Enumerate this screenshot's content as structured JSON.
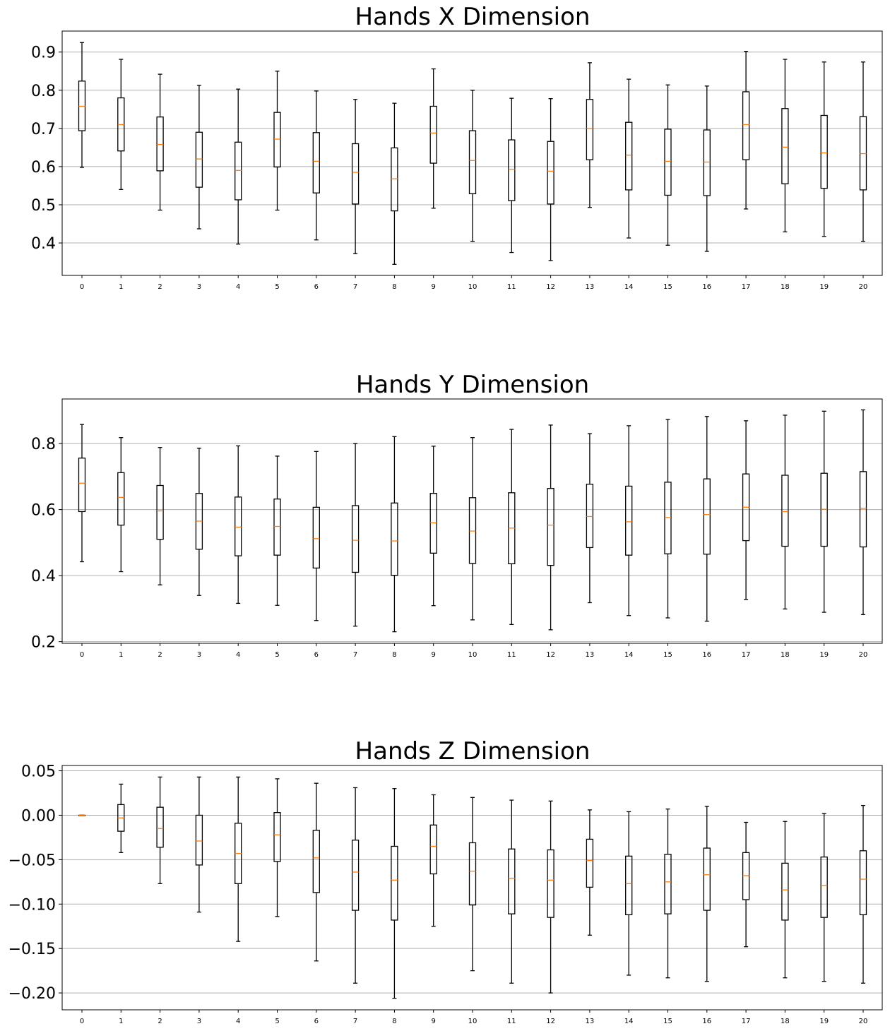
{
  "chart_data": [
    {
      "type": "box",
      "title": "Hands X Dimension",
      "xlabel": "",
      "ylabel": "",
      "categories": [
        "0",
        "1",
        "2",
        "3",
        "4",
        "5",
        "6",
        "7",
        "8",
        "9",
        "10",
        "11",
        "12",
        "13",
        "14",
        "15",
        "16",
        "17",
        "18",
        "19",
        "20"
      ],
      "ylim": [
        0.315,
        0.955
      ],
      "yticks": [
        0.4,
        0.5,
        0.6,
        0.7,
        0.8,
        0.9
      ],
      "ytick_labels": [
        "0.4",
        "0.5",
        "0.6",
        "0.7",
        "0.8",
        "0.9"
      ],
      "grid": "y",
      "boxes": [
        {
          "whislo": 0.598,
          "q1": 0.694,
          "med": 0.758,
          "q3": 0.824,
          "whishi": 0.925
        },
        {
          "whislo": 0.54,
          "q1": 0.641,
          "med": 0.71,
          "q3": 0.78,
          "whishi": 0.881
        },
        {
          "whislo": 0.486,
          "q1": 0.589,
          "med": 0.658,
          "q3": 0.73,
          "whishi": 0.842
        },
        {
          "whislo": 0.437,
          "q1": 0.546,
          "med": 0.62,
          "q3": 0.69,
          "whishi": 0.813
        },
        {
          "whislo": 0.397,
          "q1": 0.513,
          "med": 0.59,
          "q3": 0.664,
          "whishi": 0.803
        },
        {
          "whislo": 0.486,
          "q1": 0.599,
          "med": 0.672,
          "q3": 0.742,
          "whishi": 0.85
        },
        {
          "whislo": 0.408,
          "q1": 0.531,
          "med": 0.614,
          "q3": 0.689,
          "whishi": 0.798
        },
        {
          "whislo": 0.372,
          "q1": 0.502,
          "med": 0.585,
          "q3": 0.66,
          "whishi": 0.776
        },
        {
          "whislo": 0.344,
          "q1": 0.484,
          "med": 0.568,
          "q3": 0.649,
          "whishi": 0.766
        },
        {
          "whislo": 0.491,
          "q1": 0.609,
          "med": 0.688,
          "q3": 0.758,
          "whishi": 0.856
        },
        {
          "whislo": 0.404,
          "q1": 0.529,
          "med": 0.616,
          "q3": 0.694,
          "whishi": 0.8
        },
        {
          "whislo": 0.375,
          "q1": 0.511,
          "med": 0.593,
          "q3": 0.67,
          "whishi": 0.779
        },
        {
          "whislo": 0.354,
          "q1": 0.502,
          "med": 0.588,
          "q3": 0.666,
          "whishi": 0.778
        },
        {
          "whislo": 0.493,
          "q1": 0.618,
          "med": 0.7,
          "q3": 0.776,
          "whishi": 0.872
        },
        {
          "whislo": 0.413,
          "q1": 0.539,
          "med": 0.63,
          "q3": 0.716,
          "whishi": 0.829
        },
        {
          "whislo": 0.394,
          "q1": 0.525,
          "med": 0.614,
          "q3": 0.698,
          "whishi": 0.814
        },
        {
          "whislo": 0.378,
          "q1": 0.524,
          "med": 0.612,
          "q3": 0.696,
          "whishi": 0.811
        },
        {
          "whislo": 0.489,
          "q1": 0.618,
          "med": 0.71,
          "q3": 0.796,
          "whishi": 0.902
        },
        {
          "whislo": 0.429,
          "q1": 0.555,
          "med": 0.651,
          "q3": 0.752,
          "whishi": 0.881
        },
        {
          "whislo": 0.417,
          "q1": 0.543,
          "med": 0.636,
          "q3": 0.734,
          "whishi": 0.874
        },
        {
          "whislo": 0.404,
          "q1": 0.539,
          "med": 0.634,
          "q3": 0.731,
          "whishi": 0.874
        }
      ]
    },
    {
      "type": "box",
      "title": "Hands Y Dimension",
      "xlabel": "",
      "ylabel": "",
      "categories": [
        "0",
        "1",
        "2",
        "3",
        "4",
        "5",
        "6",
        "7",
        "8",
        "9",
        "10",
        "11",
        "12",
        "13",
        "14",
        "15",
        "16",
        "17",
        "18",
        "19",
        "20"
      ],
      "ylim": [
        0.195,
        0.935
      ],
      "yticks": [
        0.2,
        0.4,
        0.6,
        0.8
      ],
      "ytick_labels": [
        "0.2",
        "0.4",
        "0.6",
        "0.8"
      ],
      "grid": "y",
      "boxes": [
        {
          "whislo": 0.442,
          "q1": 0.594,
          "med": 0.68,
          "q3": 0.756,
          "whishi": 0.858
        },
        {
          "whislo": 0.412,
          "q1": 0.553,
          "med": 0.637,
          "q3": 0.712,
          "whishi": 0.818
        },
        {
          "whislo": 0.372,
          "q1": 0.51,
          "med": 0.596,
          "q3": 0.673,
          "whishi": 0.788
        },
        {
          "whislo": 0.34,
          "q1": 0.48,
          "med": 0.565,
          "q3": 0.649,
          "whishi": 0.786
        },
        {
          "whislo": 0.316,
          "q1": 0.46,
          "med": 0.547,
          "q3": 0.638,
          "whishi": 0.793
        },
        {
          "whislo": 0.31,
          "q1": 0.462,
          "med": 0.549,
          "q3": 0.632,
          "whishi": 0.762
        },
        {
          "whislo": 0.264,
          "q1": 0.423,
          "med": 0.512,
          "q3": 0.607,
          "whishi": 0.776
        },
        {
          "whislo": 0.247,
          "q1": 0.41,
          "med": 0.507,
          "q3": 0.612,
          "whishi": 0.8
        },
        {
          "whislo": 0.23,
          "q1": 0.401,
          "med": 0.505,
          "q3": 0.62,
          "whishi": 0.821
        },
        {
          "whislo": 0.309,
          "q1": 0.468,
          "med": 0.56,
          "q3": 0.649,
          "whishi": 0.792
        },
        {
          "whislo": 0.266,
          "q1": 0.437,
          "med": 0.535,
          "q3": 0.636,
          "whishi": 0.818
        },
        {
          "whislo": 0.252,
          "q1": 0.436,
          "med": 0.544,
          "q3": 0.651,
          "whishi": 0.843
        },
        {
          "whislo": 0.236,
          "q1": 0.431,
          "med": 0.553,
          "q3": 0.664,
          "whishi": 0.856
        },
        {
          "whislo": 0.318,
          "q1": 0.485,
          "med": 0.579,
          "q3": 0.677,
          "whishi": 0.83
        },
        {
          "whislo": 0.279,
          "q1": 0.462,
          "med": 0.563,
          "q3": 0.671,
          "whishi": 0.854
        },
        {
          "whislo": 0.272,
          "q1": 0.466,
          "med": 0.576,
          "q3": 0.683,
          "whishi": 0.873
        },
        {
          "whislo": 0.262,
          "q1": 0.465,
          "med": 0.585,
          "q3": 0.693,
          "whishi": 0.882
        },
        {
          "whislo": 0.328,
          "q1": 0.506,
          "med": 0.607,
          "q3": 0.708,
          "whishi": 0.869
        },
        {
          "whislo": 0.299,
          "q1": 0.489,
          "med": 0.594,
          "q3": 0.704,
          "whishi": 0.886
        },
        {
          "whislo": 0.289,
          "q1": 0.489,
          "med": 0.601,
          "q3": 0.71,
          "whishi": 0.898
        },
        {
          "whislo": 0.282,
          "q1": 0.487,
          "med": 0.604,
          "q3": 0.715,
          "whishi": 0.902
        }
      ]
    },
    {
      "type": "box",
      "title": "Hands Z Dimension",
      "xlabel": "",
      "ylabel": "",
      "categories": [
        "0",
        "1",
        "2",
        "3",
        "4",
        "5",
        "6",
        "7",
        "8",
        "9",
        "10",
        "11",
        "12",
        "13",
        "14",
        "15",
        "16",
        "17",
        "18",
        "19",
        "20"
      ],
      "ylim": [
        -0.219,
        0.056
      ],
      "yticks": [
        -0.2,
        -0.15,
        -0.1,
        -0.05,
        0.0,
        0.05
      ],
      "ytick_labels": [
        "−0.20",
        "−0.15",
        "−0.10",
        "−0.05",
        "0.00",
        "0.05"
      ],
      "grid": "y",
      "boxes": [
        {
          "whislo": 0.0,
          "q1": 0.0,
          "med": 0.0,
          "q3": 0.0,
          "whishi": 0.0
        },
        {
          "whislo": -0.042,
          "q1": -0.018,
          "med": -0.003,
          "q3": 0.012,
          "whishi": 0.035
        },
        {
          "whislo": -0.077,
          "q1": -0.036,
          "med": -0.015,
          "q3": 0.009,
          "whishi": 0.043
        },
        {
          "whislo": -0.109,
          "q1": -0.056,
          "med": -0.029,
          "q3": 0.0,
          "whishi": 0.043
        },
        {
          "whislo": -0.142,
          "q1": -0.077,
          "med": -0.043,
          "q3": -0.009,
          "whishi": 0.043
        },
        {
          "whislo": -0.114,
          "q1": -0.052,
          "med": -0.022,
          "q3": 0.003,
          "whishi": 0.041
        },
        {
          "whislo": -0.164,
          "q1": -0.087,
          "med": -0.048,
          "q3": -0.017,
          "whishi": 0.036
        },
        {
          "whislo": -0.189,
          "q1": -0.107,
          "med": -0.064,
          "q3": -0.028,
          "whishi": 0.031
        },
        {
          "whislo": -0.206,
          "q1": -0.118,
          "med": -0.073,
          "q3": -0.035,
          "whishi": 0.03
        },
        {
          "whislo": -0.125,
          "q1": -0.066,
          "med": -0.035,
          "q3": -0.011,
          "whishi": 0.023
        },
        {
          "whislo": -0.175,
          "q1": -0.101,
          "med": -0.063,
          "q3": -0.031,
          "whishi": 0.02
        },
        {
          "whislo": -0.189,
          "q1": -0.111,
          "med": -0.071,
          "q3": -0.038,
          "whishi": 0.017
        },
        {
          "whislo": -0.2,
          "q1": -0.115,
          "med": -0.073,
          "q3": -0.039,
          "whishi": 0.016
        },
        {
          "whislo": -0.135,
          "q1": -0.081,
          "med": -0.051,
          "q3": -0.027,
          "whishi": 0.006
        },
        {
          "whislo": -0.18,
          "q1": -0.112,
          "med": -0.077,
          "q3": -0.046,
          "whishi": 0.004
        },
        {
          "whislo": -0.183,
          "q1": -0.111,
          "med": -0.075,
          "q3": -0.044,
          "whishi": 0.007
        },
        {
          "whislo": -0.187,
          "q1": -0.107,
          "med": -0.067,
          "q3": -0.037,
          "whishi": 0.01
        },
        {
          "whislo": -0.148,
          "q1": -0.095,
          "med": -0.068,
          "q3": -0.042,
          "whishi": -0.008
        },
        {
          "whislo": -0.183,
          "q1": -0.118,
          "med": -0.084,
          "q3": -0.054,
          "whishi": -0.007
        },
        {
          "whislo": -0.187,
          "q1": -0.115,
          "med": -0.079,
          "q3": -0.047,
          "whishi": 0.002
        },
        {
          "whislo": -0.189,
          "q1": -0.112,
          "med": -0.072,
          "q3": -0.04,
          "whishi": 0.011
        }
      ]
    }
  ],
  "style": {
    "box_color": "#000000",
    "median_color": "#ff7f0e",
    "grid_color": "#b0b0b0",
    "background": "#ffffff"
  }
}
